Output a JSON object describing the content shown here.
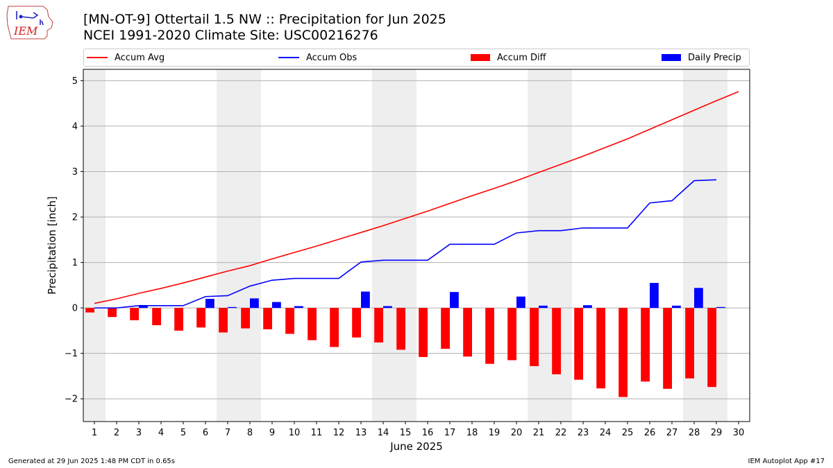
{
  "header": {
    "title": "[MN-OT-9] Ottertail 1.5 NW :: Precipitation for Jun 2025",
    "subtitle": "NCEI 1991-2020 Climate Site: USC00216276",
    "logo_text": "IEM"
  },
  "legend": [
    {
      "label": "Accum Avg",
      "kind": "line",
      "color": "#ff0000"
    },
    {
      "label": "Accum Obs",
      "kind": "line",
      "color": "#0000ff"
    },
    {
      "label": "Accum Diff",
      "kind": "bar",
      "color": "#ff0000"
    },
    {
      "label": "Daily Precip",
      "kind": "bar",
      "color": "#0000ff"
    }
  ],
  "footer": {
    "left": "Generated at 29 Jun 2025 1:48 PM CDT in 0.65s",
    "right": "IEM Autoplot App #17"
  },
  "chart_data": {
    "type": "bar",
    "xlabel": "June 2025",
    "ylabel": "Precipitation [inch]",
    "ylim": [
      -2.5,
      5.25
    ],
    "xlim": [
      0.5,
      30.5
    ],
    "yticks": [
      -2,
      -1,
      0,
      1,
      2,
      3,
      4,
      5
    ],
    "grid": true,
    "weekend_shading": [
      1,
      7,
      8,
      14,
      15,
      21,
      22,
      28,
      29
    ],
    "days": [
      1,
      2,
      3,
      4,
      5,
      6,
      7,
      8,
      9,
      10,
      11,
      12,
      13,
      14,
      15,
      16,
      17,
      18,
      19,
      20,
      21,
      22,
      23,
      24,
      25,
      26,
      27,
      28,
      29,
      30
    ],
    "series": [
      {
        "name": "Accum Avg",
        "type": "line",
        "color": "#ff0000",
        "values": [
          0.1,
          0.2,
          0.32,
          0.43,
          0.55,
          0.68,
          0.81,
          0.93,
          1.08,
          1.22,
          1.36,
          1.51,
          1.66,
          1.81,
          1.97,
          2.13,
          2.3,
          2.47,
          2.63,
          2.8,
          2.98,
          3.16,
          3.34,
          3.53,
          3.72,
          3.93,
          4.14,
          4.35,
          4.56,
          4.76
        ]
      },
      {
        "name": "Accum Obs",
        "type": "line",
        "color": "#0000ff",
        "values": [
          0.0,
          0.0,
          0.05,
          0.05,
          0.05,
          0.25,
          0.27,
          0.48,
          0.61,
          0.65,
          0.65,
          0.65,
          1.01,
          1.05,
          1.05,
          1.05,
          1.4,
          1.4,
          1.4,
          1.65,
          1.7,
          1.7,
          1.76,
          1.76,
          1.76,
          2.31,
          2.36,
          2.8,
          2.82
        ]
      },
      {
        "name": "Accum Diff",
        "type": "bar",
        "color": "#ff0000",
        "values": [
          -0.1,
          -0.2,
          -0.27,
          -0.38,
          -0.5,
          -0.43,
          -0.54,
          -0.45,
          -0.47,
          -0.57,
          -0.71,
          -0.86,
          -0.65,
          -0.76,
          -0.92,
          -1.08,
          -0.9,
          -1.07,
          -1.23,
          -1.15,
          -1.28,
          -1.46,
          -1.58,
          -1.77,
          -1.96,
          -1.62,
          -1.78,
          -1.55,
          -1.74
        ]
      },
      {
        "name": "Daily Precip",
        "type": "bar",
        "color": "#0000ff",
        "values": [
          0.0,
          0.0,
          0.05,
          0.0,
          0.0,
          0.2,
          0.02,
          0.21,
          0.13,
          0.04,
          0.0,
          0.0,
          0.36,
          0.04,
          0.0,
          0.0,
          0.35,
          0.0,
          0.0,
          0.25,
          0.05,
          0.0,
          0.06,
          0.0,
          0.0,
          0.55,
          0.05,
          0.44,
          0.02
        ]
      }
    ]
  }
}
